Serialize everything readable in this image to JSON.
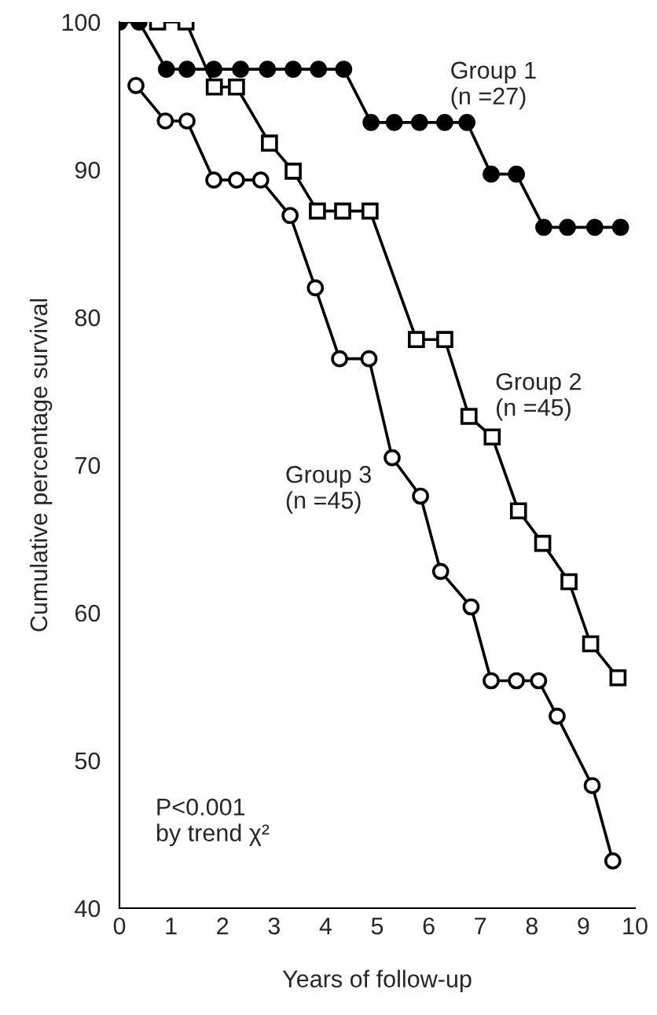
{
  "chart_data": {
    "type": "line",
    "xlabel": "Years of follow-up",
    "ylabel": "Cumulative percentage survival",
    "xlim": [
      0,
      10
    ],
    "ylim": [
      40,
      100
    ],
    "xticks": [
      0,
      1,
      2,
      3,
      4,
      5,
      6,
      7,
      8,
      9,
      10
    ],
    "yticks": [
      40,
      50,
      60,
      70,
      80,
      90,
      100
    ],
    "grid": false,
    "legend": false,
    "series": [
      {
        "name": "Group 1\n(n =27)",
        "color": "#000000",
        "marker": "circle",
        "x": [
          0,
          0.38,
          0.91,
          1.31,
          1.83,
          2.35,
          2.87,
          3.37,
          3.86,
          4.35,
          4.88,
          5.33,
          5.82,
          6.31,
          6.74,
          7.21,
          7.7,
          8.23,
          8.69,
          9.22,
          9.72
        ],
        "values": [
          100,
          100,
          96.8,
          96.8,
          96.8,
          96.8,
          96.8,
          96.8,
          96.8,
          96.8,
          93.2,
          93.2,
          93.2,
          93.2,
          93.2,
          89.7,
          89.7,
          86.1,
          86.1,
          86.1,
          86.1
        ]
      },
      {
        "name": "Group 2\n(n =45)",
        "color": "#ffffff",
        "marker": "square",
        "x": [
          0.74,
          1.29,
          1.84,
          2.27,
          2.91,
          3.37,
          3.84,
          4.33,
          4.86,
          5.76,
          6.31,
          6.78,
          7.23,
          7.74,
          8.21,
          8.72,
          9.14,
          9.67
        ],
        "values": [
          100,
          100,
          95.6,
          95.6,
          91.8,
          89.9,
          87.2,
          87.2,
          87.2,
          78.5,
          78.5,
          73.3,
          71.9,
          66.9,
          64.7,
          62.1,
          57.9,
          55.6
        ]
      },
      {
        "name": "Group 3\n(n =45)",
        "color": "#ffffff",
        "marker": "circle",
        "x": [
          0.32,
          0.89,
          1.31,
          1.83,
          2.27,
          2.74,
          3.31,
          3.8,
          4.27,
          4.84,
          5.29,
          5.84,
          6.23,
          6.82,
          7.21,
          7.7,
          8.13,
          8.49,
          9.17,
          9.57
        ],
        "values": [
          95.7,
          93.3,
          93.3,
          89.3,
          89.3,
          89.3,
          86.9,
          82.0,
          77.2,
          77.2,
          70.5,
          67.9,
          62.8,
          60.4,
          55.4,
          55.4,
          55.4,
          53.0,
          48.3,
          43.2
        ]
      }
    ],
    "annotations": [
      "P<0.001\nby trend χ²"
    ]
  }
}
